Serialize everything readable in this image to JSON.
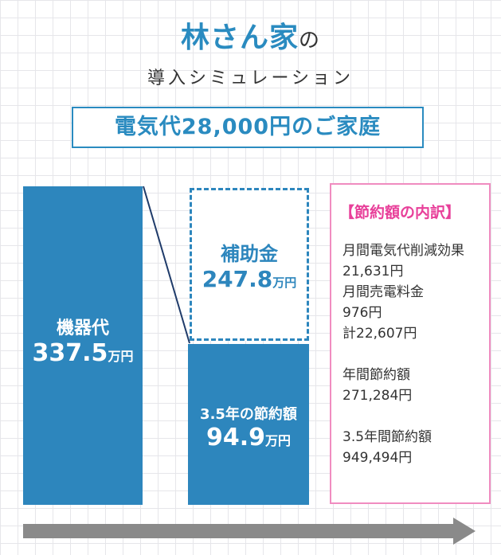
{
  "header": {
    "title": "林さん家",
    "title_particle": "の",
    "subtitle": "導入シミュレーション",
    "premise": "電気代28,000円のご家庭"
  },
  "equipment": {
    "label": "機器代",
    "value": "337.5",
    "unit": "万円"
  },
  "subsidy": {
    "label": "補助金",
    "value": "247.8",
    "unit": "万円"
  },
  "savings": {
    "label": "3.5年の節約額",
    "value": "94.9",
    "unit": "万円"
  },
  "breakdown": {
    "heading": "【節約額の内訳】",
    "lines": [
      "月間電気代削減効果",
      "21,631円",
      "月間売電料金",
      "976円",
      "計22,607円",
      "年間節約額",
      "271,284円",
      "3.5年間節約額",
      "949,494円"
    ]
  },
  "colors": {
    "accent": "#2d86bd",
    "breakdown_border": "#f08cc0",
    "breakdown_heading": "#e8409a",
    "arrow": "#8a8a8a"
  },
  "icons": {
    "arrow": "right-arrow-icon"
  }
}
